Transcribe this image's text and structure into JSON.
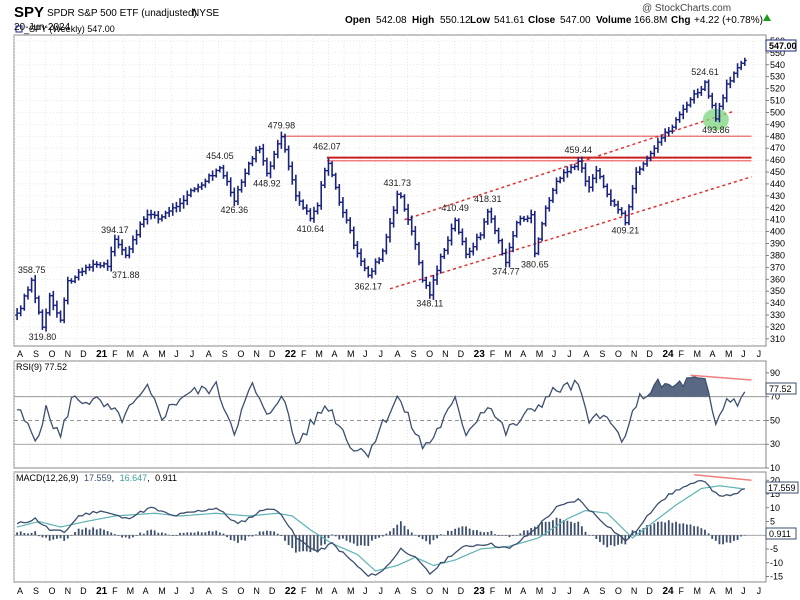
{
  "header": {
    "symbol": "SPY",
    "name": "SPDR S&P 500 ETF (unadjusted)",
    "exchange": "NYSE",
    "date": "20-Jun-2024",
    "open_label": "Open",
    "open": "542.08",
    "high_label": "High",
    "high": "550.12",
    "low_label": "Low",
    "low": "541.61",
    "close_label": "Close",
    "close": "547.00",
    "volume_label": "Volume",
    "volume": "166.8M",
    "chg_label": "Chg",
    "chg": "+4.22 (+0.78%)",
    "watermark": "@ StockCharts.com"
  },
  "chart_data": [
    {
      "type": "ohlc",
      "legend": "_SPY (Weekly) 547.00",
      "last_value_label": "547.00",
      "ylim": [
        304,
        565
      ],
      "yticks": [
        310,
        320,
        330,
        340,
        350,
        360,
        370,
        380,
        390,
        400,
        410,
        420,
        430,
        440,
        450,
        460,
        470,
        480,
        490,
        500,
        510,
        520,
        530,
        540,
        550,
        560
      ],
      "x_start": "2020-08-01",
      "x_end": "2024-07-25",
      "x_tick_labels": [
        "A",
        "S",
        "O",
        "N",
        "D",
        "21",
        "F",
        "M",
        "A",
        "M",
        "J",
        "J",
        "A",
        "S",
        "O",
        "N",
        "D",
        "22",
        "F",
        "M",
        "A",
        "M",
        "J",
        "J",
        "A",
        "S",
        "O",
        "N",
        "D",
        "23",
        "F",
        "M",
        "A",
        "M",
        "J",
        "J",
        "A",
        "S",
        "O",
        "N",
        "D",
        "24",
        "F",
        "M",
        "A",
        "M",
        "J",
        "J"
      ],
      "x_bold_labels": [
        "21",
        "22",
        "23",
        "24"
      ],
      "anchors": [
        [
          "2020-08-07",
          330
        ],
        [
          "2020-09-04",
          358.75
        ],
        [
          "2020-09-25",
          319.8
        ],
        [
          "2020-10-09",
          347
        ],
        [
          "2020-10-30",
          326
        ],
        [
          "2020-11-13",
          358
        ],
        [
          "2020-12-11",
          366
        ],
        [
          "2021-01-01",
          373
        ],
        [
          "2021-01-29",
          371.88
        ],
        [
          "2021-02-12",
          392
        ],
        [
          "2021-03-05",
          381
        ],
        [
          "2021-04-16",
          416
        ],
        [
          "2021-05-14",
          411
        ],
        [
          "2021-06-25",
          428
        ],
        [
          "2021-07-16",
          436
        ],
        [
          "2021-08-27",
          451
        ],
        [
          "2021-09-03",
          454.05
        ],
        [
          "2021-10-01",
          426.36
        ],
        [
          "2021-10-29",
          459
        ],
        [
          "2021-11-19",
          470
        ],
        [
          "2021-12-03",
          448.92
        ],
        [
          "2021-12-31",
          479.98
        ],
        [
          "2022-01-28",
          430
        ],
        [
          "2022-02-25",
          410.64
        ],
        [
          "2022-03-11",
          422
        ],
        [
          "2022-03-29",
          462.07
        ],
        [
          "2022-04-22",
          426
        ],
        [
          "2022-05-20",
          390
        ],
        [
          "2022-06-17",
          362.17
        ],
        [
          "2022-07-15",
          384
        ],
        [
          "2022-08-12",
          431.73
        ],
        [
          "2022-08-19",
          428
        ],
        [
          "2022-09-09",
          402
        ],
        [
          "2022-09-30",
          360
        ],
        [
          "2022-10-14",
          348.11
        ],
        [
          "2022-11-04",
          378
        ],
        [
          "2022-12-02",
          410.49
        ],
        [
          "2022-12-23",
          380
        ],
        [
          "2023-01-20",
          398
        ],
        [
          "2023-02-03",
          418.31
        ],
        [
          "2023-03-10",
          374.77
        ],
        [
          "2023-03-31",
          408
        ],
        [
          "2023-04-28",
          415
        ],
        [
          "2023-05-05",
          380.65
        ],
        [
          "2023-05-26",
          420
        ],
        [
          "2023-06-16",
          442
        ],
        [
          "2023-07-28",
          459.44
        ],
        [
          "2023-08-18",
          436
        ],
        [
          "2023-09-01",
          451
        ],
        [
          "2023-09-22",
          431
        ],
        [
          "2023-10-27",
          409.21
        ],
        [
          "2023-11-17",
          450
        ],
        [
          "2023-12-29",
          476
        ],
        [
          "2024-01-26",
          488
        ],
        [
          "2024-02-23",
          508
        ],
        [
          "2024-03-29",
          524.61
        ],
        [
          "2024-04-19",
          493.86
        ],
        [
          "2024-05-10",
          522
        ],
        [
          "2024-05-24",
          532
        ],
        [
          "2024-06-20",
          547
        ]
      ],
      "annotations": [
        {
          "label": "358.75",
          "date": "2020-09-04",
          "price": 358.75,
          "pos": "above"
        },
        {
          "label": "319.80",
          "date": "2020-09-25",
          "price": 319.8,
          "pos": "below"
        },
        {
          "label": "394.17",
          "date": "2021-02-12",
          "price": 392,
          "pos": "above"
        },
        {
          "label": "371.88",
          "date": "2021-03-05",
          "price": 371.88,
          "pos": "below"
        },
        {
          "label": "454.05",
          "date": "2021-09-03",
          "price": 454.05,
          "pos": "above"
        },
        {
          "label": "426.36",
          "date": "2021-10-01",
          "price": 426.36,
          "pos": "below"
        },
        {
          "label": "448.92",
          "date": "2021-12-03",
          "price": 448.92,
          "pos": "below"
        },
        {
          "label": "479.98",
          "date": "2021-12-31",
          "price": 479.98,
          "pos": "above"
        },
        {
          "label": "410.64",
          "date": "2022-02-25",
          "price": 410.64,
          "pos": "below"
        },
        {
          "label": "462.07",
          "date": "2022-03-29",
          "price": 462.07,
          "pos": "above"
        },
        {
          "label": "362.17",
          "date": "2022-06-17",
          "price": 362.17,
          "pos": "below"
        },
        {
          "label": "431.73",
          "date": "2022-08-12",
          "price": 431.73,
          "pos": "above"
        },
        {
          "label": "348.11",
          "date": "2022-10-14",
          "price": 348.11,
          "pos": "below"
        },
        {
          "label": "410.49",
          "date": "2022-12-02",
          "price": 410.49,
          "pos": "above"
        },
        {
          "label": "418.31",
          "date": "2023-02-03",
          "price": 418.31,
          "pos": "above"
        },
        {
          "label": "374.77",
          "date": "2023-03-10",
          "price": 374.77,
          "pos": "below"
        },
        {
          "label": "380.65",
          "date": "2023-05-05",
          "price": 380.65,
          "pos": "below"
        },
        {
          "label": "459.44",
          "date": "2023-07-28",
          "price": 459.44,
          "pos": "above"
        },
        {
          "label": "409.21",
          "date": "2023-10-27",
          "price": 409.21,
          "pos": "below"
        },
        {
          "label": "524.61",
          "date": "2024-03-29",
          "price": 524.61,
          "pos": "above"
        },
        {
          "label": "493.86",
          "date": "2024-04-19",
          "price": 493.86,
          "pos": "below"
        }
      ],
      "lines": [
        {
          "name": "resistance-line-480",
          "color": "#f08080",
          "dashed": false,
          "x1": "2021-12-31",
          "y1": 479.98,
          "x2": "2024-06-27",
          "y2": 479.98
        },
        {
          "name": "resistance-line-462",
          "color": "#c81e1e",
          "dashed": false,
          "x1": "2022-03-29",
          "y1": 462.07,
          "x2": "2024-06-27",
          "y2": 462.07
        },
        {
          "name": "resistance-line-459",
          "color": "#f08080",
          "dashed": false,
          "x1": "2022-03-29",
          "y1": 459.44,
          "x2": "2024-06-27",
          "y2": 459.44
        },
        {
          "name": "upper-trend-channel",
          "color": "#e03030",
          "dashed": true,
          "x1": "2022-08-26",
          "y1": 410,
          "x2": "2024-05-24",
          "y2": 501
        },
        {
          "name": "lower-trend-channel",
          "color": "#e03030",
          "dashed": true,
          "x1": "2022-07-29",
          "y1": 352,
          "x2": "2024-06-27",
          "y2": 446
        }
      ],
      "highlight": {
        "date": "2024-04-19",
        "price": 494,
        "color": "#7cd67c"
      },
      "colors": {
        "bars": "#1a237e",
        "grid": "#d9d9d9"
      }
    },
    {
      "type": "line",
      "legend": "RSI(9) 77.52",
      "last_value_label": "77.52",
      "ylim": [
        10,
        100
      ],
      "yticks": [
        10,
        30,
        50,
        70,
        90
      ],
      "levels": [
        30,
        50,
        70
      ],
      "anchors": [
        [
          "2020-08-07",
          60
        ],
        [
          "2020-09-11",
          34
        ],
        [
          "2020-10-02",
          58
        ],
        [
          "2020-10-30",
          36
        ],
        [
          "2020-11-20",
          68
        ],
        [
          "2021-01-08",
          66
        ],
        [
          "2021-02-26",
          52
        ],
        [
          "2021-04-16",
          76
        ],
        [
          "2021-05-14",
          54
        ],
        [
          "2021-06-25",
          72
        ],
        [
          "2021-08-27",
          78
        ],
        [
          "2021-10-01",
          42
        ],
        [
          "2021-11-05",
          80
        ],
        [
          "2021-12-03",
          52
        ],
        [
          "2021-12-31",
          74
        ],
        [
          "2022-01-28",
          30
        ],
        [
          "2022-03-29",
          64
        ],
        [
          "2022-05-20",
          26
        ],
        [
          "2022-06-17",
          24
        ],
        [
          "2022-08-12",
          70
        ],
        [
          "2022-09-30",
          28
        ],
        [
          "2022-10-14",
          32
        ],
        [
          "2022-12-02",
          66
        ],
        [
          "2022-12-23",
          40
        ],
        [
          "2023-02-03",
          64
        ],
        [
          "2023-03-10",
          40
        ],
        [
          "2023-04-28",
          58
        ],
        [
          "2023-06-16",
          76
        ],
        [
          "2023-07-28",
          80
        ],
        [
          "2023-08-18",
          45
        ],
        [
          "2023-09-01",
          60
        ],
        [
          "2023-10-27",
          32
        ],
        [
          "2023-11-17",
          66
        ],
        [
          "2023-12-29",
          80
        ],
        [
          "2024-01-26",
          78
        ],
        [
          "2024-03-01",
          84
        ],
        [
          "2024-03-29",
          82
        ],
        [
          "2024-04-19",
          46
        ],
        [
          "2024-05-10",
          68
        ],
        [
          "2024-05-31",
          66
        ],
        [
          "2024-06-20",
          77.52
        ]
      ],
      "overbought_fill": {
        "from": "2023-12-08",
        "to": "2024-04-05",
        "color": "#3c4f6e"
      },
      "divergence": {
        "x1": "2024-03-01",
        "y1": 88,
        "x2": "2024-06-27",
        "y2": 84,
        "color": "#f08080"
      },
      "colors": {
        "line": "#3c4f6e",
        "levels": "#888888"
      }
    },
    {
      "type": "macd",
      "legend_prefix": "MACD(12,26,9)",
      "macd_value": "17.559",
      "signal_value": "16.647",
      "hist_value": "0.911",
      "ylim": [
        -17,
        23
      ],
      "yticks": [
        -15,
        -10,
        -5,
        0,
        5,
        10,
        15,
        20
      ],
      "macd_anchors": [
        [
          "2020-08-07",
          4
        ],
        [
          "2020-09-11",
          6
        ],
        [
          "2020-10-09",
          2
        ],
        [
          "2020-11-06",
          1
        ],
        [
          "2020-12-04",
          7
        ],
        [
          "2021-01-15",
          9
        ],
        [
          "2021-03-05",
          6
        ],
        [
          "2021-04-23",
          10
        ],
        [
          "2021-06-04",
          7
        ],
        [
          "2021-08-27",
          10
        ],
        [
          "2021-10-08",
          4
        ],
        [
          "2021-12-03",
          10
        ],
        [
          "2021-12-31",
          8
        ],
        [
          "2022-01-28",
          -1
        ],
        [
          "2022-03-11",
          -6
        ],
        [
          "2022-04-08",
          -3
        ],
        [
          "2022-05-20",
          -10
        ],
        [
          "2022-06-17",
          -15
        ],
        [
          "2022-07-15",
          -13
        ],
        [
          "2022-08-19",
          -5
        ],
        [
          "2022-09-09",
          -7
        ],
        [
          "2022-10-14",
          -14
        ],
        [
          "2022-11-25",
          -7
        ],
        [
          "2022-12-23",
          -4
        ],
        [
          "2023-02-03",
          -3
        ],
        [
          "2023-03-17",
          -5
        ],
        [
          "2023-04-28",
          1
        ],
        [
          "2023-06-16",
          10
        ],
        [
          "2023-07-28",
          13
        ],
        [
          "2023-09-01",
          7
        ],
        [
          "2023-10-27",
          -2
        ],
        [
          "2023-11-24",
          3
        ],
        [
          "2023-12-29",
          12
        ],
        [
          "2024-02-09",
          17
        ],
        [
          "2024-03-29",
          20
        ],
        [
          "2024-04-19",
          15
        ],
        [
          "2024-05-17",
          14
        ],
        [
          "2024-06-20",
          17.559
        ]
      ],
      "signal_anchors": [
        [
          "2020-08-07",
          3
        ],
        [
          "2020-09-18",
          5
        ],
        [
          "2020-10-30",
          3
        ],
        [
          "2020-12-18",
          5
        ],
        [
          "2021-02-12",
          7
        ],
        [
          "2021-04-30",
          8
        ],
        [
          "2021-06-18",
          7
        ],
        [
          "2021-08-27",
          8
        ],
        [
          "2021-10-29",
          7
        ],
        [
          "2021-12-24",
          8
        ],
        [
          "2022-01-21",
          7
        ],
        [
          "2022-02-25",
          2
        ],
        [
          "2022-04-08",
          -3
        ],
        [
          "2022-05-27",
          -7
        ],
        [
          "2022-07-01",
          -13
        ],
        [
          "2022-08-12",
          -11
        ],
        [
          "2022-09-16",
          -8
        ],
        [
          "2022-10-21",
          -11
        ],
        [
          "2022-12-02",
          -9
        ],
        [
          "2023-01-20",
          -5
        ],
        [
          "2023-03-17",
          -4
        ],
        [
          "2023-05-12",
          -1
        ],
        [
          "2023-07-07",
          6
        ],
        [
          "2023-08-11",
          9
        ],
        [
          "2023-09-22",
          8
        ],
        [
          "2023-11-10",
          -1
        ],
        [
          "2023-12-15",
          4
        ],
        [
          "2024-02-02",
          11
        ],
        [
          "2024-03-22",
          17
        ],
        [
          "2024-04-26",
          18
        ],
        [
          "2024-06-20",
          16.647
        ]
      ],
      "divergence": {
        "x1": "2024-03-08",
        "y1": 22,
        "x2": "2024-06-27",
        "y2": 20,
        "color": "#f08080"
      },
      "colors": {
        "macd": "#3c4f6e",
        "signal": "#5fb3b3",
        "hist": "#3c4f6e",
        "zero": "#888888"
      }
    }
  ]
}
